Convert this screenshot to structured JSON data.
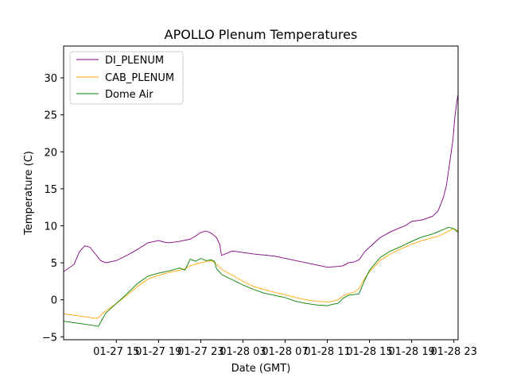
{
  "chart_data": {
    "type": "line",
    "title": "APOLLO Plenum Temperatures",
    "xlabel": "Date (GMT)",
    "ylabel": "Temperature (C)",
    "x_unit": "hours since 01-27 10:00 GMT",
    "xlim": [
      0,
      37.4
    ],
    "ylim": [
      -5.4,
      34.3
    ],
    "grid": false,
    "legend_position": "top-left",
    "x_ticks": [
      {
        "value": 5,
        "label": "01-27 15"
      },
      {
        "value": 9,
        "label": "01-27 19"
      },
      {
        "value": 13,
        "label": "01-27 23"
      },
      {
        "value": 17,
        "label": "01-28 03"
      },
      {
        "value": 21,
        "label": "01-28 07"
      },
      {
        "value": 25,
        "label": "01-28 11"
      },
      {
        "value": 29,
        "label": "01-28 15"
      },
      {
        "value": 33,
        "label": "01-28 19"
      },
      {
        "value": 37,
        "label": "01-28 23"
      }
    ],
    "y_ticks": [
      {
        "value": -5,
        "label": "−5"
      },
      {
        "value": 0,
        "label": "0"
      },
      {
        "value": 5,
        "label": "5"
      },
      {
        "value": 10,
        "label": "10"
      },
      {
        "value": 15,
        "label": "15"
      },
      {
        "value": 20,
        "label": "20"
      },
      {
        "value": 25,
        "label": "25"
      },
      {
        "value": 30,
        "label": "30"
      }
    ],
    "series": [
      {
        "name": "DI_PLENUM",
        "color": "#800080",
        "x": [
          0,
          1.0,
          1.5,
          2.0,
          2.5,
          3.0,
          3.5,
          4.0,
          5.0,
          6.0,
          7.0,
          8.0,
          9.0,
          9.5,
          10.0,
          11.0,
          12.0,
          12.5,
          13.0,
          13.5,
          14.0,
          14.5,
          14.8,
          14.9,
          15.0,
          16.0,
          18.0,
          20.0,
          22.0,
          23.0,
          24.0,
          25.0,
          26.0,
          26.5,
          27.0,
          27.5,
          28.0,
          28.3,
          28.6,
          29.0,
          30.0,
          31.0,
          32.0,
          32.5,
          33.0,
          34.0,
          35.0,
          35.5,
          36.0,
          36.3,
          36.6,
          36.9,
          37.1,
          37.3,
          37.4
        ],
        "y": [
          3.8,
          4.8,
          6.5,
          7.3,
          7.1,
          6.2,
          5.3,
          5.0,
          5.3,
          6.0,
          6.8,
          7.7,
          8.0,
          7.8,
          7.7,
          7.9,
          8.2,
          8.6,
          9.1,
          9.3,
          9.0,
          8.4,
          7.5,
          6.5,
          6.0,
          6.6,
          6.2,
          5.9,
          5.3,
          5.0,
          4.7,
          4.4,
          4.5,
          4.6,
          5.0,
          5.1,
          5.4,
          6.0,
          6.6,
          7.1,
          8.4,
          9.2,
          9.8,
          10.1,
          10.6,
          10.8,
          11.3,
          12.0,
          13.8,
          15.5,
          18.5,
          21.5,
          24.8,
          27.0,
          27.8
        ]
      },
      {
        "name": "CAB_PLENUM",
        "color": "#FFA500",
        "x": [
          0,
          1.0,
          2.0,
          3.0,
          3.3,
          3.6,
          4.0,
          5.0,
          6.0,
          7.0,
          8.0,
          9.0,
          10.0,
          11.0,
          11.5,
          12.0,
          13.0,
          14.0,
          14.5,
          15.0,
          16.0,
          17.0,
          18.0,
          19.0,
          20.0,
          21.0,
          22.0,
          23.0,
          24.0,
          25.0,
          25.5,
          26.0,
          26.5,
          27.0,
          27.5,
          28.0,
          28.5,
          29.0,
          30.0,
          31.0,
          32.0,
          33.0,
          34.0,
          35.0,
          35.5,
          36.0,
          36.5,
          37.0,
          37.4
        ],
        "y": [
          -1.9,
          -2.1,
          -2.3,
          -2.5,
          -2.4,
          -2.0,
          -1.5,
          -0.5,
          0.6,
          1.8,
          2.8,
          3.3,
          3.7,
          4.0,
          4.2,
          4.6,
          5.0,
          5.3,
          4.8,
          4.1,
          3.3,
          2.5,
          1.8,
          1.4,
          1.0,
          0.7,
          0.3,
          0.0,
          -0.2,
          -0.3,
          -0.2,
          0.0,
          0.5,
          0.8,
          1.0,
          1.5,
          2.8,
          3.8,
          5.3,
          6.2,
          6.9,
          7.5,
          8.0,
          8.4,
          8.6,
          8.9,
          9.3,
          9.6,
          9.3
        ]
      },
      {
        "name": "Dome Air",
        "color": "#008000",
        "x": [
          0,
          1.0,
          2.0,
          3.0,
          3.3,
          3.6,
          4.0,
          5.0,
          6.0,
          7.0,
          8.0,
          9.0,
          10.0,
          11.0,
          11.5,
          12.0,
          12.5,
          13.0,
          13.5,
          14.0,
          14.3,
          14.5,
          15.0,
          16.0,
          17.0,
          18.0,
          19.0,
          20.0,
          21.0,
          22.0,
          23.0,
          24.0,
          25.0,
          25.5,
          26.0,
          26.5,
          27.0,
          27.5,
          28.0,
          28.5,
          29.0,
          30.0,
          31.0,
          32.0,
          33.0,
          34.0,
          35.0,
          35.5,
          36.0,
          36.5,
          37.0,
          37.4
        ],
        "y": [
          -2.9,
          -3.1,
          -3.3,
          -3.5,
          -3.6,
          -2.8,
          -1.8,
          -0.5,
          0.8,
          2.2,
          3.2,
          3.6,
          3.9,
          4.3,
          4.0,
          5.5,
          5.2,
          5.6,
          5.3,
          5.4,
          5.2,
          4.2,
          3.4,
          2.7,
          2.0,
          1.4,
          0.9,
          0.6,
          0.3,
          -0.2,
          -0.5,
          -0.7,
          -0.8,
          -0.6,
          -0.5,
          0.2,
          0.6,
          0.7,
          0.8,
          2.5,
          4.0,
          5.7,
          6.6,
          7.2,
          7.9,
          8.5,
          8.9,
          9.2,
          9.5,
          9.8,
          9.6,
          9.1
        ]
      }
    ]
  }
}
